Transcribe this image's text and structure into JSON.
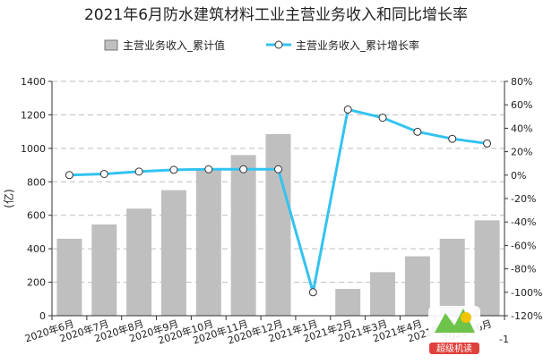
{
  "chart_data": {
    "type": "bar+line",
    "title": "2021年6月防水建筑材料工业主营业务收入和同比增长率",
    "categories": [
      "2020年6月",
      "2020年7月",
      "2020年8月",
      "2020年9月",
      "2020年10月",
      "2020年11月",
      "2020年12月",
      "2021年1月",
      "2021年2月",
      "2021年3月",
      "2021年4月",
      "2021年5月",
      "2021年6月"
    ],
    "series": [
      {
        "name": "主营业务收入_累计值",
        "kind": "bar",
        "axis": "left",
        "color": "#bfbfbf",
        "values": [
          460,
          545,
          640,
          750,
          870,
          960,
          1085,
          null,
          160,
          260,
          355,
          460,
          570
        ]
      },
      {
        "name": "主营业务收入_累计增长率",
        "kind": "line",
        "axis": "right",
        "color": "#33c3f0",
        "values": [
          0,
          1,
          3,
          4.5,
          5,
          5,
          5,
          -100,
          56,
          49,
          37,
          31,
          27
        ]
      }
    ],
    "ylabel": "(亿)",
    "ylim": [
      0,
      1400
    ],
    "yticks": [
      0,
      200,
      400,
      600,
      800,
      1000,
      1200,
      1400
    ],
    "y2lim": [
      -120,
      80
    ],
    "y2ticks": [
      "80%",
      "60%",
      "40%",
      "20%",
      "0%",
      "-20%",
      "-40%",
      "-60%",
      "-80%",
      "-100%",
      "-120%"
    ],
    "y2tick_values": [
      80,
      60,
      40,
      20,
      0,
      -20,
      -40,
      -60,
      -80,
      -100,
      -120
    ],
    "extra_right_tick": "-1",
    "grid": "horizontal-dashed",
    "legend_position": "top"
  },
  "watermark": {
    "text": "超级机读"
  }
}
